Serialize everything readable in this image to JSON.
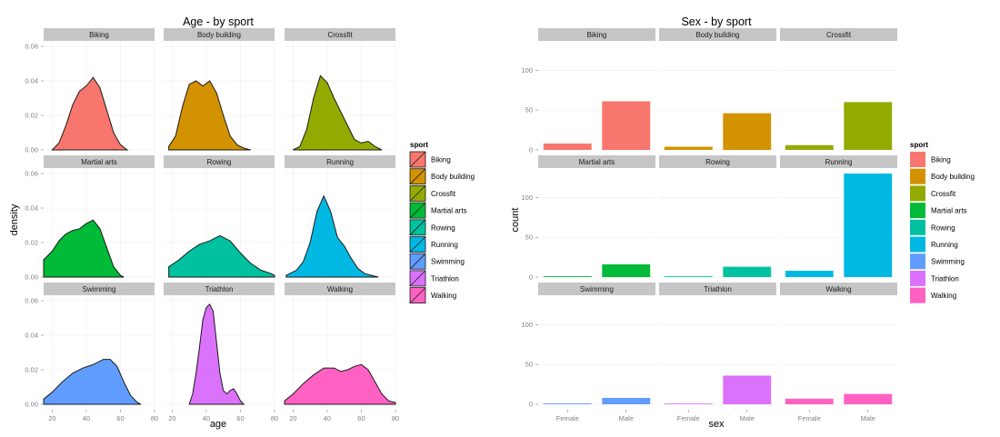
{
  "palette": {
    "Biking": "#F8766D",
    "Body building": "#D39200",
    "Crossfit": "#93AA00",
    "Martial arts": "#00BA38",
    "Rowing": "#00C19F",
    "Running": "#00B9E3",
    "Swimming": "#619CFF",
    "Triathlon": "#DB72FB",
    "Walking": "#FF61C3"
  },
  "chart_data": [
    {
      "type": "area",
      "title": "Age - by sport",
      "xlabel": "age",
      "ylabel": "density",
      "xlim": [
        15,
        80
      ],
      "ylim": [
        0,
        0.06
      ],
      "x_ticks": [
        "20",
        "40",
        "60",
        "80"
      ],
      "y_ticks": [
        "0.00",
        "0.02",
        "0.04",
        "0.06"
      ],
      "legend_title": "sport",
      "legend_position": "right",
      "facets": [
        {
          "name": "Biking",
          "points": [
            [
              20,
              0
            ],
            [
              24,
              0.004
            ],
            [
              28,
              0.014
            ],
            [
              32,
              0.026
            ],
            [
              36,
              0.034
            ],
            [
              40,
              0.037
            ],
            [
              44,
              0.042
            ],
            [
              48,
              0.036
            ],
            [
              52,
              0.023
            ],
            [
              56,
              0.01
            ],
            [
              60,
              0.003
            ],
            [
              64,
              0
            ]
          ]
        },
        {
          "name": "Body building",
          "points": [
            [
              18,
              0.002
            ],
            [
              22,
              0.008
            ],
            [
              26,
              0.025
            ],
            [
              30,
              0.038
            ],
            [
              34,
              0.04
            ],
            [
              38,
              0.037
            ],
            [
              42,
              0.04
            ],
            [
              46,
              0.033
            ],
            [
              50,
              0.02
            ],
            [
              54,
              0.008
            ],
            [
              58,
              0.003
            ],
            [
              62,
              0.001
            ],
            [
              66,
              0
            ]
          ]
        },
        {
          "name": "Crossfit",
          "points": [
            [
              20,
              0
            ],
            [
              24,
              0.002
            ],
            [
              28,
              0.012
            ],
            [
              32,
              0.03
            ],
            [
              36,
              0.043
            ],
            [
              40,
              0.039
            ],
            [
              44,
              0.03
            ],
            [
              48,
              0.022
            ],
            [
              52,
              0.014
            ],
            [
              56,
              0.006
            ],
            [
              60,
              0.004
            ],
            [
              64,
              0.005
            ],
            [
              68,
              0.002
            ],
            [
              72,
              0
            ]
          ]
        },
        {
          "name": "Martial arts",
          "points": [
            [
              15,
              0.01
            ],
            [
              20,
              0.015
            ],
            [
              24,
              0.021
            ],
            [
              28,
              0.025
            ],
            [
              32,
              0.027
            ],
            [
              36,
              0.028
            ],
            [
              40,
              0.031
            ],
            [
              44,
              0.033
            ],
            [
              48,
              0.028
            ],
            [
              52,
              0.017
            ],
            [
              56,
              0.006
            ],
            [
              60,
              0.001
            ],
            [
              62,
              0
            ]
          ]
        },
        {
          "name": "Rowing",
          "points": [
            [
              18,
              0.006
            ],
            [
              24,
              0.01
            ],
            [
              30,
              0.015
            ],
            [
              36,
              0.019
            ],
            [
              42,
              0.021
            ],
            [
              48,
              0.024
            ],
            [
              54,
              0.021
            ],
            [
              60,
              0.014
            ],
            [
              66,
              0.008
            ],
            [
              72,
              0.004
            ],
            [
              78,
              0.002
            ],
            [
              80,
              0.001
            ]
          ]
        },
        {
          "name": "Running",
          "points": [
            [
              16,
              0.001
            ],
            [
              22,
              0.004
            ],
            [
              26,
              0.009
            ],
            [
              30,
              0.02
            ],
            [
              34,
              0.038
            ],
            [
              38,
              0.047
            ],
            [
              42,
              0.038
            ],
            [
              46,
              0.023
            ],
            [
              50,
              0.018
            ],
            [
              54,
              0.011
            ],
            [
              58,
              0.005
            ],
            [
              62,
              0.002
            ],
            [
              66,
              0.001
            ],
            [
              70,
              0
            ]
          ]
        },
        {
          "name": "Swimming",
          "points": [
            [
              15,
              0.003
            ],
            [
              20,
              0.007
            ],
            [
              26,
              0.013
            ],
            [
              32,
              0.018
            ],
            [
              38,
              0.021
            ],
            [
              44,
              0.023
            ],
            [
              50,
              0.026
            ],
            [
              54,
              0.026
            ],
            [
              58,
              0.022
            ],
            [
              62,
              0.013
            ],
            [
              66,
              0.005
            ],
            [
              70,
              0.001
            ],
            [
              72,
              0
            ]
          ]
        },
        {
          "name": "Triathlon",
          "points": [
            [
              30,
              0
            ],
            [
              32,
              0.006
            ],
            [
              34,
              0.018
            ],
            [
              36,
              0.033
            ],
            [
              38,
              0.049
            ],
            [
              40,
              0.056
            ],
            [
              42,
              0.058
            ],
            [
              44,
              0.054
            ],
            [
              46,
              0.036
            ],
            [
              48,
              0.018
            ],
            [
              50,
              0.008
            ],
            [
              52,
              0.006
            ],
            [
              54,
              0.008
            ],
            [
              56,
              0.009
            ],
            [
              58,
              0.006
            ],
            [
              60,
              0.002
            ],
            [
              62,
              0
            ]
          ]
        },
        {
          "name": "Walking",
          "points": [
            [
              15,
              0.002
            ],
            [
              20,
              0.006
            ],
            [
              26,
              0.012
            ],
            [
              32,
              0.017
            ],
            [
              38,
              0.021
            ],
            [
              44,
              0.021
            ],
            [
              48,
              0.019
            ],
            [
              52,
              0.02
            ],
            [
              56,
              0.022
            ],
            [
              60,
              0.023
            ],
            [
              64,
              0.02
            ],
            [
              68,
              0.013
            ],
            [
              72,
              0.006
            ],
            [
              76,
              0.002
            ],
            [
              80,
              0.001
            ]
          ]
        }
      ]
    },
    {
      "type": "bar",
      "title": "Sex - by sport",
      "xlabel": "sex",
      "ylabel": "count",
      "categories": [
        "Female",
        "Male"
      ],
      "ylim": [
        0,
        130
      ],
      "y_ticks": [
        "0",
        "50",
        "100"
      ],
      "legend_title": "sport",
      "legend_position": "right",
      "facets": [
        {
          "name": "Biking",
          "values": [
            8,
            61
          ]
        },
        {
          "name": "Body building",
          "values": [
            4,
            46
          ]
        },
        {
          "name": "Crossfit",
          "values": [
            6,
            60
          ]
        },
        {
          "name": "Martial arts",
          "values": [
            1,
            16
          ]
        },
        {
          "name": "Rowing",
          "values": [
            1,
            13
          ]
        },
        {
          "name": "Running",
          "values": [
            8,
            130
          ]
        },
        {
          "name": "Swimming",
          "values": [
            1,
            8
          ]
        },
        {
          "name": "Triathlon",
          "values": [
            1,
            36
          ]
        },
        {
          "name": "Walking",
          "values": [
            7,
            13
          ]
        }
      ]
    }
  ]
}
